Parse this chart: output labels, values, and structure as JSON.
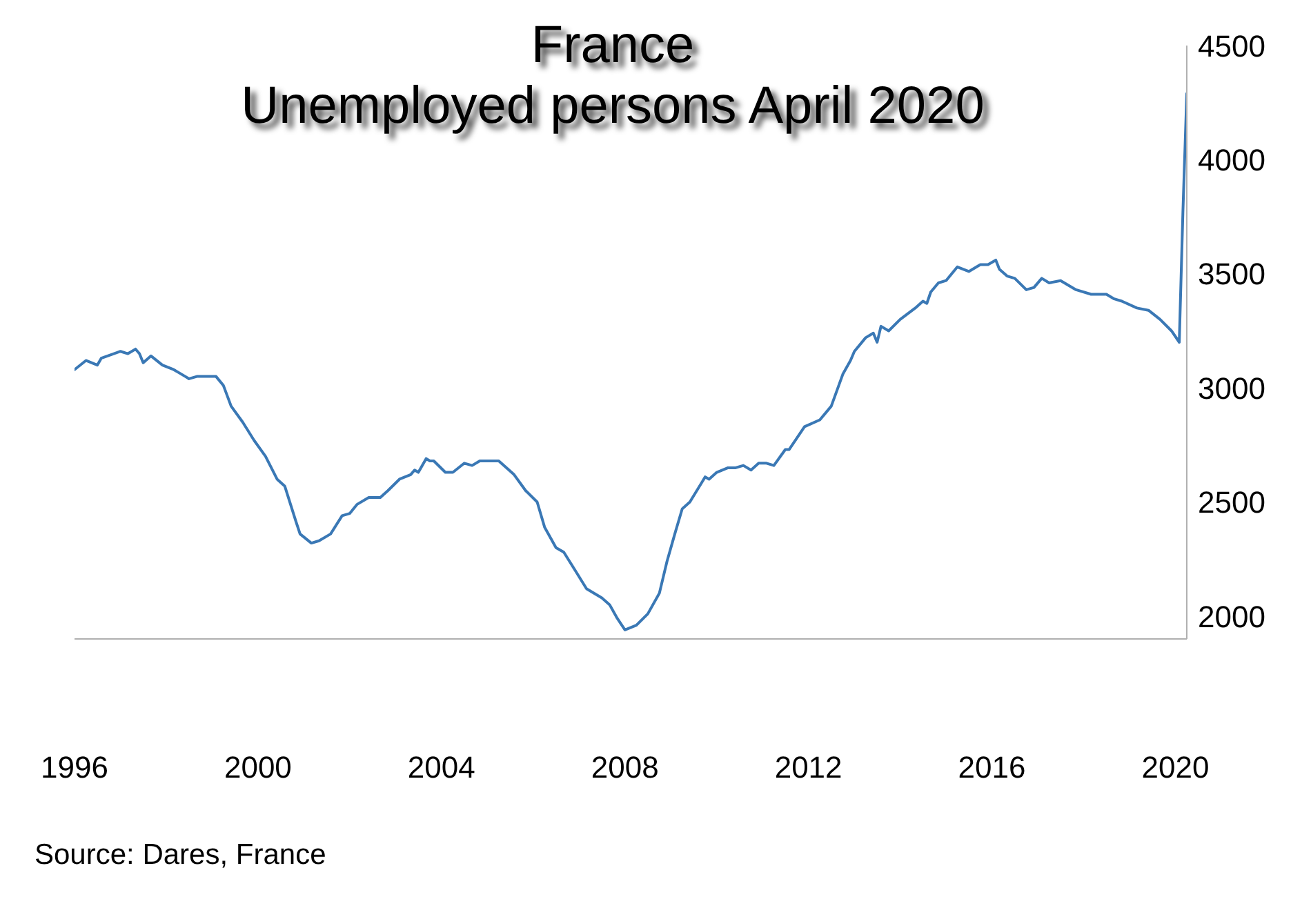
{
  "chart_data": {
    "type": "line",
    "title": "France",
    "subtitle": "Unemployed persons April 2020",
    "annotations": [
      "Source: Dares, France"
    ],
    "x": [
      "1996-01",
      "1996-04",
      "1996-07",
      "1996-08",
      "1997-01",
      "1997-03",
      "1997-05",
      "1997-06",
      "1997-07",
      "1997-09",
      "1997-12",
      "1998-03",
      "1998-06",
      "1998-07",
      "1998-09",
      "1999-02",
      "1999-04",
      "1999-06",
      "1999-09",
      "1999-12",
      "2000-03",
      "2000-06",
      "2000-08",
      "2000-11",
      "2000-12",
      "2001-03",
      "2001-05",
      "2001-08",
      "2001-11",
      "2002-01",
      "2002-03",
      "2002-06",
      "2002-09",
      "2002-11",
      "2003-02",
      "2003-05",
      "2003-06",
      "2003-07",
      "2003-09",
      "2003-10",
      "2003-11",
      "2004-02",
      "2004-04",
      "2004-07",
      "2004-09",
      "2004-11",
      "2005-04",
      "2005-08",
      "2005-11",
      "2006-02",
      "2006-04",
      "2006-07",
      "2006-09",
      "2006-12",
      "2007-03",
      "2007-07",
      "2007-09",
      "2007-11",
      "2008-01",
      "2008-04",
      "2008-07",
      "2008-10",
      "2008-12",
      "2009-02",
      "2009-04",
      "2009-06",
      "2009-10",
      "2009-11",
      "2010-01",
      "2010-04",
      "2010-06",
      "2010-08",
      "2010-10",
      "2010-12",
      "2011-02",
      "2011-04",
      "2011-07",
      "2011-08",
      "2011-12",
      "2012-04",
      "2012-07",
      "2012-10",
      "2012-12",
      "2013-01",
      "2013-04",
      "2013-06",
      "2013-07",
      "2013-08",
      "2013-10",
      "2014-01",
      "2014-05",
      "2014-07",
      "2014-08",
      "2014-09",
      "2014-11",
      "2015-01",
      "2015-04",
      "2015-07",
      "2015-10",
      "2015-12",
      "2016-02",
      "2016-03",
      "2016-05",
      "2016-07",
      "2016-10",
      "2016-12",
      "2017-02",
      "2017-04",
      "2017-07",
      "2017-11",
      "2018-03",
      "2018-07",
      "2018-09",
      "2018-11",
      "2019-03",
      "2019-06",
      "2019-09",
      "2019-12",
      "2020-02",
      "2020-03",
      "2020-04"
    ],
    "values": [
      3080,
      3120,
      3100,
      3130,
      3160,
      3150,
      3170,
      3150,
      3110,
      3140,
      3100,
      3080,
      3050,
      3040,
      3050,
      3050,
      3010,
      2920,
      2850,
      2770,
      2700,
      2600,
      2570,
      2410,
      2360,
      2320,
      2330,
      2360,
      2440,
      2450,
      2490,
      2520,
      2520,
      2550,
      2600,
      2620,
      2640,
      2630,
      2690,
      2680,
      2680,
      2630,
      2630,
      2670,
      2660,
      2680,
      2680,
      2620,
      2550,
      2500,
      2390,
      2300,
      2280,
      2200,
      2120,
      2080,
      2050,
      1990,
      1940,
      1960,
      2010,
      2100,
      2240,
      2360,
      2470,
      2500,
      2610,
      2600,
      2630,
      2650,
      2650,
      2660,
      2640,
      2670,
      2670,
      2660,
      2730,
      2730,
      2830,
      2860,
      2920,
      3060,
      3120,
      3160,
      3220,
      3240,
      3200,
      3270,
      3250,
      3300,
      3350,
      3380,
      3370,
      3420,
      3460,
      3470,
      3530,
      3510,
      3540,
      3540,
      3560,
      3520,
      3490,
      3480,
      3430,
      3440,
      3480,
      3460,
      3470,
      3430,
      3410,
      3410,
      3390,
      3380,
      3350,
      3340,
      3300,
      3250,
      3200,
      3770,
      4290
    ],
    "color": "#3a78b5",
    "xlim": [
      "1996-01",
      "2020-04"
    ],
    "xticks": [
      "1996",
      "2000",
      "2004",
      "2008",
      "2012",
      "2016",
      "2020"
    ],
    "ylim": [
      1900,
      4500
    ],
    "yticks": [
      2000,
      2500,
      3000,
      3500,
      4000,
      4500
    ]
  }
}
